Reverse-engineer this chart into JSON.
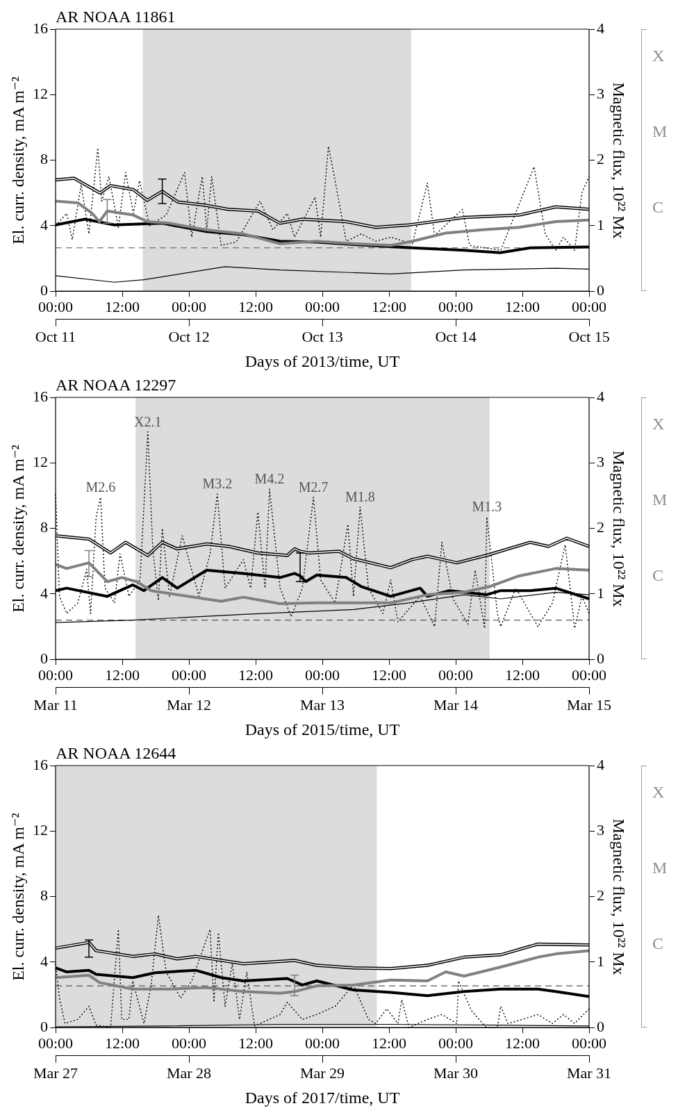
{
  "chart_data": [
    {
      "type": "line",
      "title": "AR NOAA 11861",
      "xlabel": "Days of 2013/time, UT",
      "ylabel": "El. curr. density, mA m⁻²",
      "y2label": "Magnetic flux, 10²² Mx",
      "xlim": [
        "2013-10-11T00:00",
        "2013-10-15T00:00"
      ],
      "xticks": [
        {
          "value": "2013-10-11T00:00",
          "label": "00:00"
        },
        {
          "value": "2013-10-11T12:00",
          "label": "12:00"
        },
        {
          "value": "2013-10-12T00:00",
          "label": "00:00"
        },
        {
          "value": "2013-10-12T12:00",
          "label": "12:00"
        },
        {
          "value": "2013-10-13T00:00",
          "label": "00:00"
        },
        {
          "value": "2013-10-13T12:00",
          "label": "12:00"
        },
        {
          "value": "2013-10-14T00:00",
          "label": "00:00"
        },
        {
          "value": "2013-10-14T12:00",
          "label": "12:00"
        },
        {
          "value": "2013-10-15T00:00",
          "label": "00:00"
        }
      ],
      "x2lim": [
        "2013-10-11",
        "2013-10-15"
      ],
      "x2ticks": [
        {
          "value": "2013-10-11",
          "label": "Oct 11"
        },
        {
          "value": "2013-10-12",
          "label": "Oct 12"
        },
        {
          "value": "2013-10-13",
          "label": "Oct 13"
        },
        {
          "value": "2013-10-14",
          "label": "Oct 14"
        },
        {
          "value": "2013-10-15",
          "label": "Oct 15"
        }
      ],
      "ylim": [
        0,
        16
      ],
      "yticks": [
        0,
        4,
        8,
        12,
        16
      ],
      "y2lim": [
        0,
        4
      ],
      "y2ticks": [
        0,
        1,
        2,
        3,
        4
      ],
      "annotations": [
        "X",
        "M",
        "C"
      ],
      "bands": [
        {
          "axis": "x",
          "from": "2013-10-11T15:42",
          "to": "2013-10-13T16:00",
          "color": "#dcdcdc"
        }
      ],
      "ref_lines": [
        {
          "axis": "y",
          "value": 2.65,
          "color": "#555555",
          "line_style": "dashed"
        }
      ],
      "series": [
        {
          "color": "#000000",
          "x": [
            "2013-10-11T00:00",
            "2013-10-11T03:18",
            "2013-10-11T08:00",
            "2013-10-11T09:54",
            "2013-10-11T14:00",
            "2013-10-11T16:30",
            "2013-10-11T19:12",
            "2013-10-11T22:00",
            "2013-10-12T03:00",
            "2013-10-12T07:00",
            "2013-10-12T12:24",
            "2013-10-12T16:24",
            "2013-10-12T20:24",
            "2013-10-13T04:18",
            "2013-10-13T09:36",
            "2013-10-13T15:36",
            "2013-10-14T01:30",
            "2013-10-14T11:24",
            "2013-10-14T18:00",
            "2013-10-15T00:00"
          ],
          "values": [
            6.8,
            6.9,
            6.0,
            6.45,
            6.2,
            5.55,
            6.1,
            5.45,
            5.25,
            5.0,
            4.9,
            4.15,
            4.4,
            4.25,
            3.9,
            4.05,
            4.5,
            4.65,
            5.15,
            5.0
          ],
          "errors": [
            null,
            null,
            null,
            null,
            null,
            null,
            [
              5.35,
              6.85
            ],
            null,
            null,
            null,
            null,
            null,
            null,
            null,
            null,
            null,
            null,
            null,
            null,
            null
          ]
        },
        {
          "color": "#808080",
          "x": [
            "2013-10-11T00:00",
            "2013-10-11T04:00",
            "2013-10-11T06:36",
            "2013-10-11T07:54",
            "2013-10-11T09:18",
            "2013-10-11T14:00",
            "2013-10-11T16:30",
            "2013-10-11T20:30",
            "2013-10-12T03:00",
            "2013-10-12T09:48",
            "2013-10-12T16:24",
            "2013-10-12T23:00",
            "2013-10-13T05:36",
            "2013-10-13T12:18",
            "2013-10-13T16:12",
            "2013-10-13T22:12",
            "2013-10-14T04:48",
            "2013-10-14T11:24",
            "2013-10-14T18:00",
            "2013-10-15T00:00"
          ],
          "values": [
            5.5,
            5.4,
            4.75,
            4.25,
            4.9,
            4.65,
            4.25,
            4.15,
            3.75,
            3.5,
            2.9,
            3.05,
            2.9,
            2.8,
            3.05,
            3.55,
            3.75,
            3.9,
            4.25,
            4.35
          ],
          "errors": [
            null,
            null,
            null,
            null,
            [
              4.15,
              5.6
            ],
            null,
            null,
            null,
            null,
            null,
            null,
            null,
            null,
            null,
            null,
            null,
            null,
            null,
            null,
            null
          ]
        },
        {
          "color": "#000000",
          "x": [
            "2013-10-11T00:00",
            "2013-10-11T05:18",
            "2013-10-11T10:36",
            "2013-10-11T19:12",
            "2013-10-12T03:00",
            "2013-10-12T09:48",
            "2013-10-12T16:24",
            "2013-10-12T23:00",
            "2013-10-13T05:36",
            "2013-10-13T16:12",
            "2013-10-14T01:30",
            "2013-10-14T08:00",
            "2013-10-14T13:24",
            "2013-10-15T00:00"
          ],
          "values": [
            4.05,
            4.4,
            4.05,
            4.15,
            3.65,
            3.45,
            3.05,
            3.0,
            2.85,
            2.65,
            2.5,
            2.35,
            2.65,
            2.7
          ]
        },
        {
          "color": "#000000",
          "line_style": "dotted",
          "x": [
            "2013-10-11T00:00",
            "2013-10-11T02:00",
            "2013-10-11T03:00",
            "2013-10-11T04:36",
            "2013-10-11T06:00",
            "2013-10-11T07:36",
            "2013-10-11T08:18",
            "2013-10-11T09:36",
            "2013-10-11T11:18",
            "2013-10-11T12:36",
            "2013-10-11T14:00",
            "2013-10-11T15:06",
            "2013-10-11T16:54",
            "2013-10-11T19:54",
            "2013-10-11T23:12",
            "2013-10-12T00:30",
            "2013-10-12T02:24",
            "2013-10-12T03:12",
            "2013-10-12T04:06",
            "2013-10-12T05:48",
            "2013-10-12T08:30",
            "2013-10-12T12:48",
            "2013-10-12T15:06",
            "2013-10-12T17:42",
            "2013-10-12T19:00",
            "2013-10-12T22:42",
            "2013-10-12T23:42",
            "2013-10-13T01:06",
            "2013-10-13T02:18",
            "2013-10-13T04:18",
            "2013-10-13T07:00",
            "2013-10-13T09:36",
            "2013-10-13T12:18",
            "2013-10-13T16:12",
            "2013-10-13T18:54",
            "2013-10-13T20:12",
            "2013-10-14T01:12",
            "2013-10-14T02:30",
            "2013-10-14T08:06",
            "2013-10-14T14:06",
            "2013-10-14T16:06",
            "2013-10-14T18:00",
            "2013-10-14T19:24",
            "2013-10-14T21:24",
            "2013-10-14T22:42",
            "2013-10-15T00:00"
          ],
          "values": [
            4.0,
            4.75,
            3.15,
            6.5,
            3.5,
            8.75,
            5.5,
            7.0,
            3.9,
            7.25,
            4.75,
            6.75,
            4.0,
            4.65,
            7.25,
            3.3,
            7.0,
            3.75,
            7.0,
            2.8,
            3.0,
            5.5,
            3.75,
            4.75,
            3.3,
            5.75,
            3.3,
            8.85,
            6.75,
            3.05,
            3.5,
            3.05,
            3.3,
            2.9,
            6.6,
            3.4,
            5.0,
            2.8,
            2.5,
            7.6,
            3.5,
            2.5,
            3.3,
            2.5,
            6.0,
            7.0
          ]
        },
        {
          "color": "#000000",
          "x": [
            "2013-10-11T00:00",
            "2013-10-11T10:36",
            "2013-10-11T15:54",
            "2013-10-12T06:30",
            "2013-10-12T16:24",
            "2013-10-13T12:18",
            "2013-10-14T01:30",
            "2013-10-14T18:00",
            "2013-10-15T00:00"
          ],
          "values": [
            0.95,
            0.55,
            0.7,
            1.5,
            1.3,
            1.05,
            1.3,
            1.4,
            1.35
          ]
        }
      ]
    },
    {
      "type": "line",
      "title": "AR NOAA 12297",
      "xlabel": "Days of 2015/time, UT",
      "ylabel": "El. curr. density, mA m⁻²",
      "y2label": "Magnetic flux, 10²² Mx",
      "xlim": [
        "2015-03-11T00:00",
        "2015-03-15T00:00"
      ],
      "xticks": [
        {
          "value": "2015-03-11T00:00",
          "label": "00:00"
        },
        {
          "value": "2015-03-11T12:00",
          "label": "12:00"
        },
        {
          "value": "2015-03-12T00:00",
          "label": "00:00"
        },
        {
          "value": "2015-03-12T12:00",
          "label": "12:00"
        },
        {
          "value": "2015-03-13T00:00",
          "label": "00:00"
        },
        {
          "value": "2015-03-13T12:00",
          "label": "12:00"
        },
        {
          "value": "2015-03-14T00:00",
          "label": "00:00"
        },
        {
          "value": "2015-03-14T12:00",
          "label": "12:00"
        },
        {
          "value": "2015-03-15T00:00",
          "label": "00:00"
        }
      ],
      "x2lim": [
        "2015-03-11",
        "2015-03-15"
      ],
      "x2ticks": [
        {
          "value": "2015-03-11",
          "label": "Mar 11"
        },
        {
          "value": "2015-03-12",
          "label": "Mar 12"
        },
        {
          "value": "2015-03-13",
          "label": "Mar 13"
        },
        {
          "value": "2015-03-14",
          "label": "Mar 14"
        },
        {
          "value": "2015-03-15",
          "label": "Mar 15"
        }
      ],
      "ylim": [
        0,
        16
      ],
      "yticks": [
        0,
        4,
        8,
        12,
        16
      ],
      "y2lim": [
        0,
        4
      ],
      "y2ticks": [
        0,
        1,
        2,
        3,
        4
      ],
      "bands": [
        {
          "axis": "x",
          "from": "2015-03-11T14:24",
          "to": "2015-03-14T06:06",
          "color": "#dcdcdc"
        }
      ],
      "ref_lines": [
        {
          "axis": "y",
          "value": 2.4,
          "color": "#555555",
          "line_style": "dashed"
        }
      ],
      "annotations": [
        "X",
        "M",
        "C",
        {
          "text": "M2.6",
          "x": "2015-03-11T08:06",
          "y": 9.9
        },
        {
          "text": "X2.1",
          "x": "2015-03-11T16:36",
          "y": 13.9
        },
        {
          "text": "M3.2",
          "x": "2015-03-12T05:06",
          "y": 10.1
        },
        {
          "text": "M4.2",
          "x": "2015-03-12T14:30",
          "y": 10.4
        },
        {
          "text": "M2.7",
          "x": "2015-03-12T22:24",
          "y": 9.9
        },
        {
          "text": "M1.8",
          "x": "2015-03-13T06:48",
          "y": 9.3
        },
        {
          "text": "M1.3",
          "x": "2015-03-14T05:36",
          "y": 8.7
        }
      ],
      "series": [
        {
          "color": "#000000",
          "x": [
            "2015-03-11T00:00",
            "2015-03-11T06:00",
            "2015-03-11T09:54",
            "2015-03-11T12:36",
            "2015-03-11T16:36",
            "2015-03-11T19:12",
            "2015-03-11T21:54",
            "2015-03-12T03:12",
            "2015-03-12T07:06",
            "2015-03-12T12:24",
            "2015-03-12T17:42",
            "2015-03-12T19:00",
            "2015-03-12T20:00",
            "2015-03-12T21:42",
            "2015-03-13T03:00",
            "2015-03-13T05:36",
            "2015-03-13T12:18",
            "2015-03-13T16:12",
            "2015-03-13T18:54",
            "2015-03-14T00:12",
            "2015-03-14T05:30",
            "2015-03-14T13:24",
            "2015-03-14T16:42",
            "2015-03-14T20:00",
            "2015-03-15T00:00"
          ],
          "values": [
            7.55,
            7.35,
            6.5,
            7.15,
            6.35,
            7.15,
            6.75,
            7.05,
            6.9,
            6.5,
            6.35,
            6.75,
            6.6,
            6.5,
            6.6,
            6.15,
            5.6,
            6.1,
            6.3,
            5.9,
            6.35,
            7.15,
            6.9,
            7.4,
            6.9
          ]
        },
        {
          "color": "#808080",
          "x": [
            "2015-03-11T00:00",
            "2015-03-11T02:00",
            "2015-03-11T06:00",
            "2015-03-11T09:18",
            "2015-03-11T11:54",
            "2015-03-11T14:36",
            "2015-03-11T17:12",
            "2015-03-11T21:54",
            "2015-03-12T05:48",
            "2015-03-12T09:48",
            "2015-03-12T16:24",
            "2015-03-12T23:00",
            "2015-03-13T05:36",
            "2015-03-13T12:18",
            "2015-03-13T18:54",
            "2015-03-14T01:30",
            "2015-03-14T06:06",
            "2015-03-14T11:24",
            "2015-03-14T18:00",
            "2015-03-15T00:00"
          ],
          "values": [
            5.8,
            5.55,
            5.9,
            4.75,
            5.0,
            4.75,
            4.2,
            3.95,
            3.55,
            3.8,
            3.4,
            3.45,
            3.45,
            3.45,
            3.95,
            4.1,
            4.45,
            5.1,
            5.55,
            5.45
          ],
          "errors": [
            null,
            null,
            [
              5.05,
              6.65
            ],
            null,
            null,
            null,
            null,
            null,
            null,
            null,
            null,
            null,
            null,
            null,
            null,
            null,
            null,
            null,
            null,
            null
          ]
        },
        {
          "color": "#000000",
          "x": [
            "2015-03-11T00:00",
            "2015-03-11T02:00",
            "2015-03-11T09:18",
            "2015-03-11T13:54",
            "2015-03-11T15:54",
            "2015-03-11T19:12",
            "2015-03-11T21:54",
            "2015-03-12T03:12",
            "2015-03-12T09:48",
            "2015-03-12T16:24",
            "2015-03-12T19:00",
            "2015-03-12T20:00",
            "2015-03-12T21:00",
            "2015-03-12T23:00",
            "2015-03-13T04:18",
            "2015-03-13T07:00",
            "2015-03-13T12:18",
            "2015-03-13T17:36",
            "2015-03-13T18:54",
            "2015-03-13T22:54",
            "2015-03-14T05:30",
            "2015-03-14T08:06",
            "2015-03-14T13:24",
            "2015-03-14T18:00",
            "2015-03-15T00:00"
          ],
          "values": [
            4.2,
            4.35,
            3.85,
            4.55,
            4.2,
            5.0,
            4.35,
            5.45,
            5.25,
            5.0,
            5.25,
            5.1,
            4.75,
            5.15,
            5.0,
            4.45,
            3.85,
            4.35,
            3.85,
            4.2,
            3.95,
            4.2,
            4.2,
            4.35,
            3.7
          ],
          "errors": [
            null,
            null,
            null,
            null,
            null,
            null,
            null,
            null,
            null,
            null,
            null,
            [
              4.75,
              6.5
            ],
            null,
            null,
            null,
            null,
            null,
            null,
            null,
            null,
            null,
            null,
            null,
            null,
            null
          ]
        },
        {
          "color": "#000000",
          "line_style": "dotted",
          "x": [
            "2015-03-11T00:00",
            "2015-03-11T00:42",
            "2015-03-11T02:00",
            "2015-03-11T04:00",
            "2015-03-11T05:36",
            "2015-03-11T06:18",
            "2015-03-11T07:18",
            "2015-03-11T08:06",
            "2015-03-11T08:54",
            "2015-03-11T10:36",
            "2015-03-11T11:36",
            "2015-03-11T13:12",
            "2015-03-11T15:12",
            "2015-03-11T16:36",
            "2015-03-11T17:30",
            "2015-03-11T18:30",
            "2015-03-11T19:12",
            "2015-03-11T20:30",
            "2015-03-11T22:48",
            "2015-03-12T01:48",
            "2015-03-12T03:48",
            "2015-03-12T05:06",
            "2015-03-12T06:30",
            "2015-03-12T09:48",
            "2015-03-12T11:06",
            "2015-03-12T12:24",
            "2015-03-12T13:42",
            "2015-03-12T14:30",
            "2015-03-12T16:24",
            "2015-03-12T18:24",
            "2015-03-12T20:24",
            "2015-03-12T22:24",
            "2015-03-12T23:42",
            "2015-03-13T02:18",
            "2015-03-13T04:36",
            "2015-03-13T05:36",
            "2015-03-13T06:48",
            "2015-03-13T08:18",
            "2015-03-13T10:54",
            "2015-03-13T12:18",
            "2015-03-13T13:36",
            "2015-03-13T17:36",
            "2015-03-13T20:12",
            "2015-03-13T21:30",
            "2015-03-13T23:30",
            "2015-03-14T02:12",
            "2015-03-14T03:30",
            "2015-03-14T05:12",
            "2015-03-14T05:36",
            "2015-03-14T07:30",
            "2015-03-14T08:06",
            "2015-03-14T10:48",
            "2015-03-14T14:48",
            "2015-03-14T17:24",
            "2015-03-14T19:42",
            "2015-03-14T21:24",
            "2015-03-14T22:42",
            "2015-03-15T00:00"
          ],
          "values": [
            10.1,
            3.85,
            2.8,
            3.45,
            5.5,
            2.8,
            8.7,
            9.9,
            4.35,
            3.45,
            6.45,
            3.85,
            4.85,
            13.9,
            6.7,
            3.6,
            8.0,
            3.85,
            7.55,
            3.85,
            6.45,
            10.1,
            4.35,
            6.1,
            4.35,
            9.0,
            4.35,
            10.4,
            4.35,
            2.6,
            4.35,
            9.9,
            4.85,
            3.45,
            8.25,
            3.85,
            9.3,
            4.35,
            2.8,
            4.85,
            2.3,
            3.85,
            2.0,
            7.15,
            3.7,
            2.15,
            5.45,
            1.9,
            8.7,
            2.8,
            2.0,
            4.35,
            2.0,
            3.45,
            7.0,
            1.9,
            3.85,
            2.8
          ]
        },
        {
          "color": "#000000",
          "x": [
            "2015-03-11T00:00",
            "2015-03-11T13:54",
            "2015-03-12T09:48",
            "2015-03-13T05:36",
            "2015-03-13T15:36",
            "2015-03-14T01:30",
            "2015-03-14T08:06",
            "2015-03-14T18:00",
            "2015-03-15T00:00"
          ],
          "values": [
            2.25,
            2.4,
            2.75,
            3.05,
            3.45,
            3.95,
            3.7,
            4.1,
            3.95
          ]
        }
      ]
    },
    {
      "type": "line",
      "title": "AR NOAA 12644",
      "xlabel": "Days of 2017/time, UT",
      "ylabel": "El. curr. density, mA m⁻²",
      "y2label": "Magnetic flux, 10²² Mx",
      "xlim": [
        "2017-03-27T00:00",
        "2017-03-31T00:00"
      ],
      "xticks": [
        {
          "value": "2017-03-27T00:00",
          "label": "00:00"
        },
        {
          "value": "2017-03-27T12:00",
          "label": "12:00"
        },
        {
          "value": "2017-03-28T00:00",
          "label": "00:00"
        },
        {
          "value": "2017-03-28T12:00",
          "label": "12:00"
        },
        {
          "value": "2017-03-29T00:00",
          "label": "00:00"
        },
        {
          "value": "2017-03-29T12:00",
          "label": "12:00"
        },
        {
          "value": "2017-03-30T00:00",
          "label": "00:00"
        },
        {
          "value": "2017-03-30T12:00",
          "label": "12:00"
        },
        {
          "value": "2017-03-31T00:00",
          "label": "00:00"
        }
      ],
      "x2lim": [
        "2017-03-27",
        "2017-03-31"
      ],
      "x2ticks": [
        {
          "value": "2017-03-27",
          "label": "Mar 27"
        },
        {
          "value": "2017-03-28",
          "label": "Mar 28"
        },
        {
          "value": "2017-03-29",
          "label": "Mar 29"
        },
        {
          "value": "2017-03-30",
          "label": "Mar 30"
        },
        {
          "value": "2017-03-31",
          "label": "Mar 31"
        }
      ],
      "ylim": [
        0,
        16
      ],
      "yticks": [
        0,
        4,
        8,
        12,
        16
      ],
      "y2lim": [
        0,
        4
      ],
      "y2ticks": [
        0,
        1,
        2,
        3,
        4
      ],
      "annotations": [
        "X",
        "M",
        "C"
      ],
      "bands": [
        {
          "axis": "x",
          "from": "2017-03-27T00:00",
          "to": "2017-03-29T09:48",
          "color": "#dcdcdc"
        }
      ],
      "ref_lines": [
        {
          "axis": "y",
          "value": 2.55,
          "color": "#555555",
          "line_style": "dashed"
        }
      ],
      "series": [
        {
          "color": "#000000",
          "x": [
            "2017-03-27T00:00",
            "2017-03-27T06:00",
            "2017-03-27T07:18",
            "2017-03-27T13:54",
            "2017-03-27T17:54",
            "2017-03-27T21:54",
            "2017-03-28T01:12",
            "2017-03-28T09:48",
            "2017-03-28T19:00",
            "2017-03-28T23:00",
            "2017-03-29T05:36",
            "2017-03-29T12:18",
            "2017-03-29T18:54",
            "2017-03-30T01:30",
            "2017-03-30T08:06",
            "2017-03-30T14:48",
            "2017-03-31T00:00"
          ],
          "values": [
            4.85,
            5.2,
            4.7,
            4.35,
            4.5,
            4.2,
            4.35,
            3.9,
            4.1,
            3.8,
            3.65,
            3.6,
            3.8,
            4.3,
            4.45,
            5.1,
            5.05
          ],
          "errors": [
            null,
            [
              4.3,
              5.35
            ],
            null,
            null,
            null,
            null,
            null,
            null,
            null,
            null,
            null,
            null,
            null,
            null,
            null,
            null,
            null
          ]
        },
        {
          "color": "#808080",
          "x": [
            "2017-03-27T00:00",
            "2017-03-27T06:00",
            "2017-03-27T07:54",
            "2017-03-27T13:54",
            "2017-03-27T20:30",
            "2017-03-28T03:12",
            "2017-03-28T09:48",
            "2017-03-28T16:24",
            "2017-03-28T19:00",
            "2017-03-28T23:00",
            "2017-03-29T05:36",
            "2017-03-29T12:18",
            "2017-03-29T18:54",
            "2017-03-29T22:12",
            "2017-03-30T01:30",
            "2017-03-30T08:06",
            "2017-03-30T14:48",
            "2017-03-30T18:00",
            "2017-03-31T00:00"
          ],
          "values": [
            3.05,
            3.2,
            2.75,
            2.35,
            2.35,
            2.45,
            2.2,
            2.1,
            2.2,
            2.55,
            2.6,
            2.9,
            2.85,
            3.4,
            3.15,
            3.7,
            4.3,
            4.5,
            4.7
          ],
          "errors": [
            null,
            null,
            null,
            null,
            null,
            null,
            null,
            null,
            [
              1.95,
              3.2
            ],
            null,
            null,
            null,
            null,
            null,
            null,
            null,
            null,
            null,
            null
          ]
        },
        {
          "color": "#000000",
          "x": [
            "2017-03-27T00:00",
            "2017-03-27T02:00",
            "2017-03-27T06:00",
            "2017-03-27T07:18",
            "2017-03-27T13:54",
            "2017-03-27T17:54",
            "2017-03-28T01:12",
            "2017-03-28T05:48",
            "2017-03-28T09:48",
            "2017-03-28T17:42",
            "2017-03-28T20:24",
            "2017-03-28T23:00",
            "2017-03-29T05:36",
            "2017-03-29T12:18",
            "2017-03-29T18:54",
            "2017-03-30T01:30",
            "2017-03-30T08:06",
            "2017-03-30T14:48",
            "2017-03-30T18:00",
            "2017-03-31T00:00"
          ],
          "values": [
            3.65,
            3.4,
            3.5,
            3.25,
            3.05,
            3.35,
            3.5,
            3.05,
            2.85,
            3.0,
            2.6,
            2.85,
            2.3,
            2.15,
            1.95,
            2.2,
            2.35,
            2.35,
            2.2,
            1.9
          ]
        },
        {
          "color": "#000000",
          "line_style": "dotted",
          "x": [
            "2017-03-27T00:00",
            "2017-03-27T00:42",
            "2017-03-27T01:42",
            "2017-03-27T04:00",
            "2017-03-27T06:00",
            "2017-03-27T07:18",
            "2017-03-27T09:54",
            "2017-03-27T11:18",
            "2017-03-27T11:54",
            "2017-03-27T13:12",
            "2017-03-27T13:54",
            "2017-03-27T15:54",
            "2017-03-27T17:12",
            "2017-03-27T18:30",
            "2017-03-27T19:54",
            "2017-03-27T22:30",
            "2017-03-28T00:30",
            "2017-03-28T03:48",
            "2017-03-28T04:30",
            "2017-03-28T05:18",
            "2017-03-28T06:30",
            "2017-03-28T07:48",
            "2017-03-28T09:06",
            "2017-03-28T10:24",
            "2017-03-28T11:48",
            "2017-03-28T16:24",
            "2017-03-28T17:42",
            "2017-03-28T20:24",
            "2017-03-28T23:00",
            "2017-03-29T02:18",
            "2017-03-29T05:36",
            "2017-03-29T08:18",
            "2017-03-29T09:36",
            "2017-03-29T11:36",
            "2017-03-29T13:36",
            "2017-03-29T14:18",
            "2017-03-29T15:36",
            "2017-03-29T18:54",
            "2017-03-29T21:30",
            "2017-03-30T00:12",
            "2017-03-30T00:30",
            "2017-03-30T02:48",
            "2017-03-30T05:30",
            "2017-03-30T07:30",
            "2017-03-30T08:06",
            "2017-03-30T09:24",
            "2017-03-30T12:00",
            "2017-03-30T14:48",
            "2017-03-30T17:24",
            "2017-03-30T19:24",
            "2017-03-30T21:24",
            "2017-03-31T00:00"
          ],
          "values": [
            3.9,
            1.8,
            0.25,
            0.5,
            1.3,
            0.15,
            0.0,
            6.0,
            0.5,
            0.5,
            2.85,
            0.25,
            2.6,
            6.85,
            3.4,
            1.8,
            2.85,
            6.0,
            1.55,
            5.8,
            1.3,
            3.9,
            0.5,
            3.4,
            0.1,
            0.8,
            1.55,
            0.5,
            0.8,
            1.3,
            2.6,
            0.5,
            0.25,
            1.15,
            0.25,
            1.7,
            0.0,
            0.5,
            0.8,
            0.25,
            2.85,
            1.05,
            0.0,
            0.0,
            1.3,
            0.25,
            0.5,
            0.8,
            0.25,
            0.8,
            0.25,
            1.15
          ]
        },
        {
          "color": "#000000",
          "x": [
            "2017-03-27T00:00",
            "2017-03-27T20:00",
            "2017-03-28T16:00",
            "2017-03-29T12:00",
            "2017-03-30T08:00",
            "2017-03-31T00:00"
          ],
          "values": [
            0.05,
            0.1,
            0.2,
            0.2,
            0.15,
            0.1
          ]
        }
      ]
    }
  ]
}
